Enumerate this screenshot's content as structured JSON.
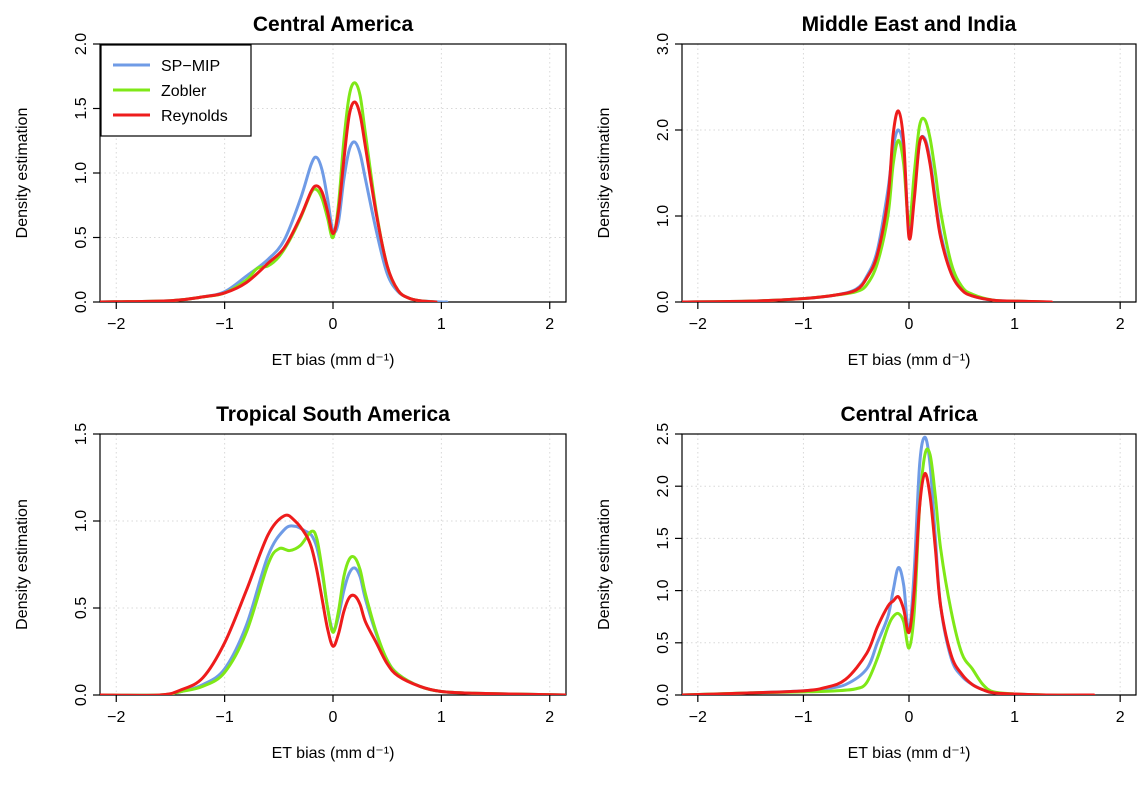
{
  "figure": {
    "colors": {
      "SP-MIP": "#6f9be6",
      "Zobler": "#7fe817",
      "Reynolds": "#ee1c1c",
      "grid": "#d8d8d8",
      "baseline": "#cfcfcf"
    }
  },
  "chart_data": [
    {
      "type": "line",
      "title": "Central America",
      "xlabel": "ET bias (mm d⁻¹)",
      "ylabel": "Density estimation",
      "xlim": [
        -2.15,
        2.15
      ],
      "ylim": [
        0,
        2.0
      ],
      "xticks": [
        -2,
        -1,
        0,
        1,
        2
      ],
      "xtick_labels": [
        "−2",
        "−1",
        "0",
        "1",
        "2"
      ],
      "yticks": [
        0,
        0.5,
        1,
        1.5,
        2
      ],
      "ytick_labels": [
        "0.0",
        "0.5",
        "1.0",
        "1.5",
        "2.0"
      ],
      "grid": true,
      "legend": {
        "placement": "top-left",
        "entries": [
          "SP−MIP",
          "Zobler",
          "Reynolds"
        ]
      },
      "series": [
        {
          "name": "SP−MIP",
          "color_key": "SP-MIP",
          "x": [
            -2.15,
            -1.5,
            -1.2,
            -1.0,
            -0.8,
            -0.6,
            -0.45,
            -0.3,
            -0.2,
            -0.15,
            -0.1,
            -0.05,
            0.0,
            0.05,
            0.1,
            0.15,
            0.2,
            0.25,
            0.3,
            0.4,
            0.5,
            0.6,
            0.7,
            0.8,
            1.0,
            1.05
          ],
          "y": [
            0.0,
            0.01,
            0.04,
            0.08,
            0.2,
            0.33,
            0.48,
            0.8,
            1.07,
            1.12,
            1.02,
            0.8,
            0.55,
            0.62,
            0.95,
            1.18,
            1.24,
            1.15,
            0.95,
            0.55,
            0.22,
            0.08,
            0.03,
            0.01,
            0.0,
            0.0
          ]
        },
        {
          "name": "Zobler",
          "color_key": "Zobler",
          "x": [
            -2.15,
            -1.5,
            -1.2,
            -1.0,
            -0.8,
            -0.7,
            -0.6,
            -0.5,
            -0.4,
            -0.3,
            -0.2,
            -0.15,
            -0.1,
            -0.05,
            0.0,
            0.05,
            0.1,
            0.15,
            0.2,
            0.25,
            0.3,
            0.4,
            0.5,
            0.6,
            0.7,
            0.8,
            0.95
          ],
          "y": [
            0.0,
            0.01,
            0.04,
            0.07,
            0.17,
            0.26,
            0.28,
            0.35,
            0.48,
            0.65,
            0.85,
            0.87,
            0.8,
            0.65,
            0.5,
            0.75,
            1.25,
            1.6,
            1.7,
            1.6,
            1.3,
            0.7,
            0.28,
            0.09,
            0.03,
            0.01,
            0.0
          ]
        },
        {
          "name": "Reynolds",
          "color_key": "Reynolds",
          "x": [
            -2.15,
            -1.5,
            -1.2,
            -1.0,
            -0.8,
            -0.6,
            -0.45,
            -0.3,
            -0.2,
            -0.15,
            -0.1,
            -0.05,
            0.0,
            0.05,
            0.1,
            0.15,
            0.2,
            0.25,
            0.3,
            0.4,
            0.5,
            0.6,
            0.7,
            0.8,
            0.95
          ],
          "y": [
            0.0,
            0.01,
            0.04,
            0.07,
            0.15,
            0.3,
            0.42,
            0.66,
            0.86,
            0.9,
            0.85,
            0.7,
            0.53,
            0.7,
            1.1,
            1.45,
            1.55,
            1.45,
            1.2,
            0.68,
            0.28,
            0.09,
            0.03,
            0.01,
            0.0
          ]
        }
      ]
    },
    {
      "type": "line",
      "title": "Middle East and India",
      "xlabel": "ET bias (mm d⁻¹)",
      "ylabel": "Density estimation",
      "xlim": [
        -2.15,
        2.15
      ],
      "ylim": [
        0,
        3.0
      ],
      "xticks": [
        -2,
        -1,
        0,
        1,
        2
      ],
      "xtick_labels": [
        "−2",
        "−1",
        "0",
        "1",
        "2"
      ],
      "yticks": [
        0,
        1,
        2,
        3
      ],
      "ytick_labels": [
        "0.0",
        "1.0",
        "2.0",
        "3.0"
      ],
      "grid": true,
      "series": [
        {
          "name": "SP−MIP",
          "color_key": "SP-MIP",
          "x": [
            -2.15,
            -1.5,
            -1.0,
            -0.7,
            -0.5,
            -0.4,
            -0.3,
            -0.2,
            -0.15,
            -0.1,
            -0.05,
            0.0,
            0.05,
            0.1,
            0.15,
            0.2,
            0.25,
            0.3,
            0.4,
            0.5,
            0.6,
            0.8,
            1.0,
            1.3
          ],
          "y": [
            0.0,
            0.01,
            0.04,
            0.08,
            0.15,
            0.3,
            0.6,
            1.3,
            1.8,
            2.0,
            1.75,
            0.85,
            1.3,
            1.85,
            1.9,
            1.65,
            1.2,
            0.8,
            0.35,
            0.15,
            0.07,
            0.02,
            0.01,
            0.0
          ]
        },
        {
          "name": "Zobler",
          "color_key": "Zobler",
          "x": [
            -2.15,
            -1.5,
            -1.0,
            -0.7,
            -0.5,
            -0.4,
            -0.3,
            -0.2,
            -0.15,
            -0.1,
            -0.05,
            0.0,
            0.05,
            0.1,
            0.15,
            0.2,
            0.25,
            0.3,
            0.4,
            0.5,
            0.6,
            0.8,
            1.0,
            1.3
          ],
          "y": [
            0.0,
            0.01,
            0.04,
            0.08,
            0.12,
            0.2,
            0.45,
            1.0,
            1.6,
            1.88,
            1.6,
            0.9,
            1.5,
            2.05,
            2.12,
            1.9,
            1.5,
            1.05,
            0.45,
            0.18,
            0.09,
            0.02,
            0.01,
            0.0
          ]
        },
        {
          "name": "Reynolds",
          "color_key": "Reynolds",
          "x": [
            -2.15,
            -1.5,
            -1.0,
            -0.7,
            -0.5,
            -0.4,
            -0.3,
            -0.2,
            -0.15,
            -0.1,
            -0.05,
            0.0,
            0.05,
            0.1,
            0.15,
            0.2,
            0.25,
            0.3,
            0.4,
            0.5,
            0.6,
            0.8,
            1.0,
            1.35
          ],
          "y": [
            0.0,
            0.01,
            0.04,
            0.08,
            0.14,
            0.28,
            0.55,
            1.2,
            1.95,
            2.22,
            1.85,
            0.75,
            1.2,
            1.85,
            1.88,
            1.6,
            1.15,
            0.75,
            0.33,
            0.14,
            0.07,
            0.02,
            0.01,
            0.0
          ]
        }
      ]
    },
    {
      "type": "line",
      "title": "Tropical South America",
      "xlabel": "ET bias (mm d⁻¹)",
      "ylabel": "Density estimation",
      "xlim": [
        -2.15,
        2.15
      ],
      "ylim": [
        0,
        1.5
      ],
      "xticks": [
        -2,
        -1,
        0,
        1,
        2
      ],
      "xtick_labels": [
        "−2",
        "−1",
        "0",
        "1",
        "2"
      ],
      "yticks": [
        0,
        0.5,
        1,
        1.5
      ],
      "ytick_labels": [
        "0.0",
        "0.5",
        "1.0",
        "1.5"
      ],
      "grid": true,
      "series": [
        {
          "name": "SP−MIP",
          "color_key": "SP-MIP",
          "x": [
            -2.15,
            -1.6,
            -1.4,
            -1.2,
            -1.0,
            -0.8,
            -0.6,
            -0.45,
            -0.35,
            -0.25,
            -0.2,
            -0.15,
            -0.1,
            -0.05,
            0.0,
            0.05,
            0.1,
            0.15,
            0.2,
            0.25,
            0.3,
            0.4,
            0.5,
            0.6,
            0.8,
            1.0,
            1.3,
            2.15
          ],
          "y": [
            0.0,
            0.0,
            0.02,
            0.06,
            0.15,
            0.4,
            0.8,
            0.95,
            0.97,
            0.94,
            0.92,
            0.85,
            0.7,
            0.5,
            0.37,
            0.45,
            0.6,
            0.7,
            0.73,
            0.68,
            0.55,
            0.35,
            0.2,
            0.12,
            0.05,
            0.02,
            0.01,
            0.0
          ]
        },
        {
          "name": "Zobler",
          "color_key": "Zobler",
          "x": [
            -2.15,
            -1.6,
            -1.4,
            -1.2,
            -1.0,
            -0.8,
            -0.6,
            -0.5,
            -0.4,
            -0.3,
            -0.2,
            -0.15,
            -0.1,
            -0.05,
            0.0,
            0.05,
            0.1,
            0.15,
            0.2,
            0.25,
            0.3,
            0.4,
            0.5,
            0.6,
            0.8,
            1.0,
            1.3,
            2.15
          ],
          "y": [
            0.0,
            0.0,
            0.02,
            0.05,
            0.13,
            0.36,
            0.75,
            0.84,
            0.83,
            0.86,
            0.94,
            0.9,
            0.72,
            0.5,
            0.36,
            0.48,
            0.68,
            0.78,
            0.79,
            0.72,
            0.58,
            0.36,
            0.2,
            0.12,
            0.05,
            0.02,
            0.01,
            0.0
          ]
        },
        {
          "name": "Reynolds",
          "color_key": "Reynolds",
          "x": [
            -2.15,
            -1.6,
            -1.4,
            -1.2,
            -1.0,
            -0.8,
            -0.6,
            -0.45,
            -0.35,
            -0.25,
            -0.2,
            -0.15,
            -0.1,
            -0.05,
            0.0,
            0.05,
            0.1,
            0.15,
            0.2,
            0.25,
            0.3,
            0.4,
            0.5,
            0.6,
            0.8,
            1.0,
            1.3,
            2.15
          ],
          "y": [
            0.0,
            0.0,
            0.03,
            0.1,
            0.3,
            0.6,
            0.92,
            1.03,
            1.0,
            0.92,
            0.85,
            0.72,
            0.55,
            0.38,
            0.28,
            0.35,
            0.48,
            0.56,
            0.57,
            0.52,
            0.42,
            0.3,
            0.18,
            0.11,
            0.05,
            0.02,
            0.01,
            0.0
          ]
        }
      ]
    },
    {
      "type": "line",
      "title": "Central Africa",
      "xlabel": "ET bias (mm d⁻¹)",
      "ylabel": "Density estimation",
      "xlim": [
        -2.15,
        2.15
      ],
      "ylim": [
        0,
        2.5
      ],
      "xticks": [
        -2,
        -1,
        0,
        1,
        2
      ],
      "xtick_labels": [
        "−2",
        "−1",
        "0",
        "1",
        "2"
      ],
      "yticks": [
        0,
        0.5,
        1,
        1.5,
        2,
        2.5
      ],
      "ytick_labels": [
        "0.0",
        "0.5",
        "1.0",
        "1.5",
        "2.0",
        "2.5"
      ],
      "grid": true,
      "series": [
        {
          "name": "SP−MIP",
          "color_key": "SP-MIP",
          "x": [
            -2.15,
            -1.5,
            -1.0,
            -0.8,
            -0.6,
            -0.4,
            -0.3,
            -0.2,
            -0.15,
            -0.1,
            -0.05,
            0.0,
            0.05,
            0.1,
            0.15,
            0.2,
            0.25,
            0.3,
            0.4,
            0.5,
            0.6,
            0.7,
            0.8,
            1.0,
            1.3,
            1.7
          ],
          "y": [
            0.0,
            0.02,
            0.04,
            0.06,
            0.1,
            0.25,
            0.5,
            0.75,
            1.0,
            1.22,
            1.05,
            0.6,
            1.2,
            2.2,
            2.47,
            2.2,
            1.5,
            0.85,
            0.35,
            0.18,
            0.1,
            0.05,
            0.02,
            0.01,
            0.0,
            0.0
          ]
        },
        {
          "name": "Zobler",
          "color_key": "Zobler",
          "x": [
            -2.15,
            -1.5,
            -1.0,
            -0.7,
            -0.5,
            -0.4,
            -0.3,
            -0.2,
            -0.15,
            -0.1,
            -0.05,
            0.0,
            0.05,
            0.1,
            0.15,
            0.2,
            0.25,
            0.3,
            0.4,
            0.5,
            0.6,
            0.7,
            0.8,
            1.0,
            1.3,
            1.7
          ],
          "y": [
            0.0,
            0.02,
            0.03,
            0.04,
            0.06,
            0.12,
            0.35,
            0.65,
            0.75,
            0.78,
            0.7,
            0.45,
            0.8,
            1.8,
            2.3,
            2.3,
            1.9,
            1.4,
            0.8,
            0.4,
            0.25,
            0.1,
            0.03,
            0.01,
            0.0,
            0.0
          ]
        },
        {
          "name": "Reynolds",
          "color_key": "Reynolds",
          "x": [
            -2.15,
            -1.5,
            -1.0,
            -0.8,
            -0.6,
            -0.4,
            -0.3,
            -0.2,
            -0.15,
            -0.1,
            -0.05,
            0.0,
            0.05,
            0.1,
            0.15,
            0.2,
            0.25,
            0.3,
            0.4,
            0.5,
            0.6,
            0.7,
            0.8,
            1.0,
            1.3,
            1.75
          ],
          "y": [
            0.0,
            0.02,
            0.04,
            0.07,
            0.15,
            0.4,
            0.65,
            0.85,
            0.9,
            0.94,
            0.82,
            0.6,
            1.0,
            1.8,
            2.12,
            1.9,
            1.4,
            0.85,
            0.38,
            0.2,
            0.1,
            0.05,
            0.02,
            0.01,
            0.0,
            0.0
          ]
        }
      ]
    }
  ]
}
